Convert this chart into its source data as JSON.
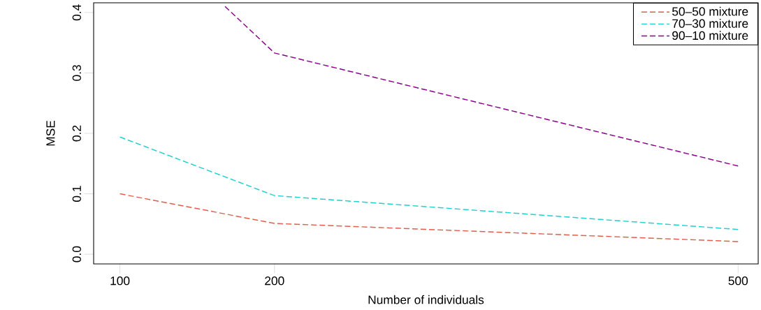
{
  "chart_data": {
    "type": "line",
    "xlabel": "Number of individuals",
    "ylabel": "MSE",
    "x": [
      100,
      200,
      500
    ],
    "series": [
      {
        "name": "50–50 mixture",
        "color": "#df5f4a",
        "values": [
          0.1,
          0.051,
          0.021
        ]
      },
      {
        "name": "70–30 mixture",
        "color": "#20cfcf",
        "values": [
          0.194,
          0.097,
          0.041
        ]
      },
      {
        "name": "90–10 mixture",
        "color": "#8b008b",
        "x": [
          168,
          200,
          500
        ],
        "values": [
          0.41,
          0.333,
          0.146
        ]
      }
    ],
    "xlim": [
      83,
      513
    ],
    "ylim": [
      -0.016,
      0.416
    ],
    "xticks": [
      100,
      200,
      500
    ],
    "yticks": [
      {
        "value": 0,
        "label": "0.0"
      },
      0.1,
      0.2,
      0.3,
      0.4
    ],
    "legend": "top right",
    "line_style": "dashed",
    "marker": "none",
    "grid": false
  }
}
